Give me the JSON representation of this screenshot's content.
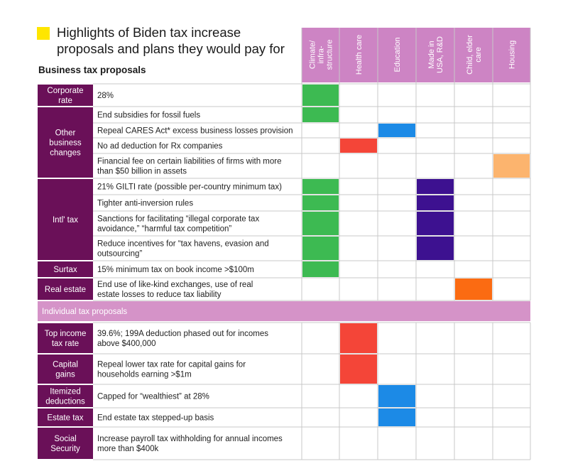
{
  "title": "Highlights of Biden tax increase proposals and plans they would pay for",
  "business_section_label": "Business tax proposals",
  "colors": {
    "header_bg": "#cd84c4",
    "category_bg": "#6a1058",
    "band_bg": "#d593c8",
    "title_square": "#ffe600",
    "climate": "#3dba52",
    "health": "#f44538",
    "education": "#1c8ae6",
    "made_in_usa": "#3d1190",
    "child_care": "#fb6b12",
    "housing": "#fcb46e"
  },
  "chart_data": {
    "type": "table",
    "columns": [
      {
        "label": [
          "Climate/",
          "infra-",
          "structure"
        ],
        "color": "#3dba52"
      },
      {
        "label": [
          "Health care"
        ],
        "color": "#f44538"
      },
      {
        "label": [
          "Education"
        ],
        "color": "#1c8ae6"
      },
      {
        "label": [
          "Made in",
          "USA, R&D"
        ],
        "color": "#3d1190"
      },
      {
        "label": [
          "Child, elder",
          "care"
        ],
        "color": "#fb6b12"
      },
      {
        "label": [
          "Housing"
        ],
        "color": "#fcb46e"
      }
    ],
    "groups": [
      {
        "category": [
          "Corporate",
          "rate"
        ],
        "rows": [
          {
            "text": [
              "28%"
            ],
            "columns": [
              0
            ]
          }
        ]
      },
      {
        "category": [
          "Other",
          "business",
          "changes"
        ],
        "rows": [
          {
            "text": [
              "End subsidies for fossil fuels"
            ],
            "columns": [
              0
            ]
          },
          {
            "text": [
              "Repeal CARES Act* excess business losses provision"
            ],
            "columns": [
              2
            ]
          },
          {
            "text": [
              "No ad deduction for Rx companies"
            ],
            "columns": [
              1
            ]
          },
          {
            "text": [
              "Financial fee on certain liabilities of firms with more",
              "than $50 billion in assets"
            ],
            "columns": [
              5
            ]
          }
        ]
      },
      {
        "category": [
          "Intl' tax"
        ],
        "rows": [
          {
            "text": [
              "21% GILTI rate (possible per-country minimum tax)"
            ],
            "columns": [
              0,
              3
            ]
          },
          {
            "text": [
              "Tighter anti-inversion rules"
            ],
            "columns": [
              0,
              3
            ]
          },
          {
            "text": [
              "Sanctions for facilitating “illegal corporate tax",
              "avoidance,” “harmful tax competition”"
            ],
            "columns": [
              0,
              3
            ]
          },
          {
            "text": [
              "Reduce incentives for “tax havens, evasion and",
              "outsourcing”"
            ],
            "columns": [
              0,
              3
            ]
          }
        ]
      },
      {
        "category": [
          "Surtax"
        ],
        "rows": [
          {
            "text": [
              "15% minimum tax on book income >$100m"
            ],
            "columns": [
              0
            ]
          }
        ]
      },
      {
        "category": [
          "Real estate"
        ],
        "rows": [
          {
            "text": [
              "End use of like-kind exchanges, use of real",
              "estate losses to reduce tax liability"
            ],
            "columns": [
              4
            ]
          }
        ]
      }
    ],
    "band_label": "Individual tax proposals",
    "individual_groups": [
      {
        "category": [
          "Top income",
          "tax rate"
        ],
        "rows": [
          {
            "text": [
              "39.6%; 199A deduction phased out for incomes",
              "above $400,000"
            ],
            "columns": [
              1
            ]
          }
        ]
      },
      {
        "category": [
          "Capital",
          "gains"
        ],
        "rows": [
          {
            "text": [
              "Repeal lower tax rate for capital gains for",
              "households earning >$1m"
            ],
            "columns": [
              1
            ]
          }
        ]
      },
      {
        "category": [
          "Itemized",
          "deductions"
        ],
        "rows": [
          {
            "text": [
              "Capped for “wealthiest” at 28%"
            ],
            "columns": [
              2
            ]
          }
        ]
      },
      {
        "category": [
          "Estate tax"
        ],
        "rows": [
          {
            "text": [
              "End estate tax stepped-up basis"
            ],
            "columns": [
              2
            ]
          }
        ]
      },
      {
        "category": [
          "Social",
          "Security"
        ],
        "rows": [
          {
            "text": [
              "Increase payroll tax withholding for annual incomes",
              "more than $400k"
            ],
            "columns": []
          }
        ]
      }
    ]
  }
}
